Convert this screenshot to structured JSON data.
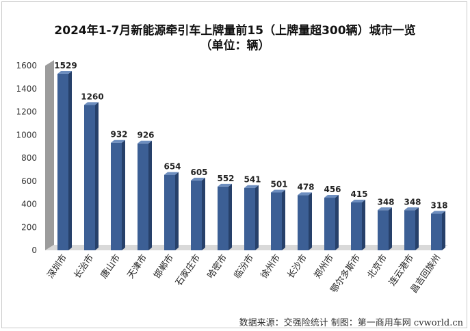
{
  "chart_data": {
    "type": "bar",
    "title": "2024年1-7月新能源牵引车上牌量前15（上牌量超300辆）城市一览",
    "subtitle": "（单位：辆）",
    "categories": [
      "深圳市",
      "长治市",
      "唐山市",
      "天津市",
      "邯郸市",
      "石家庄市",
      "哈密市",
      "临汾市",
      "徐州市",
      "长沙市",
      "郑州市",
      "鄂尔多斯市",
      "北京市",
      "连云港市",
      "昌吉回族州"
    ],
    "values": [
      1529,
      1260,
      932,
      926,
      654,
      605,
      552,
      541,
      501,
      478,
      456,
      415,
      348,
      348,
      318
    ],
    "yticks": [
      "0",
      "200",
      "400",
      "600",
      "800",
      "1000",
      "1200",
      "1400",
      "1600"
    ],
    "ylim": [
      0,
      1600
    ],
    "grid": false,
    "legend": "none",
    "colors": {
      "bar_front": "#3c5f95",
      "bar_side": "#26406a",
      "bar_top": "#6d8ebf",
      "wall": "#9c9c9c"
    }
  },
  "source": "数据来源：交强险统计  制图：第一商用车网 cvworld.cn"
}
